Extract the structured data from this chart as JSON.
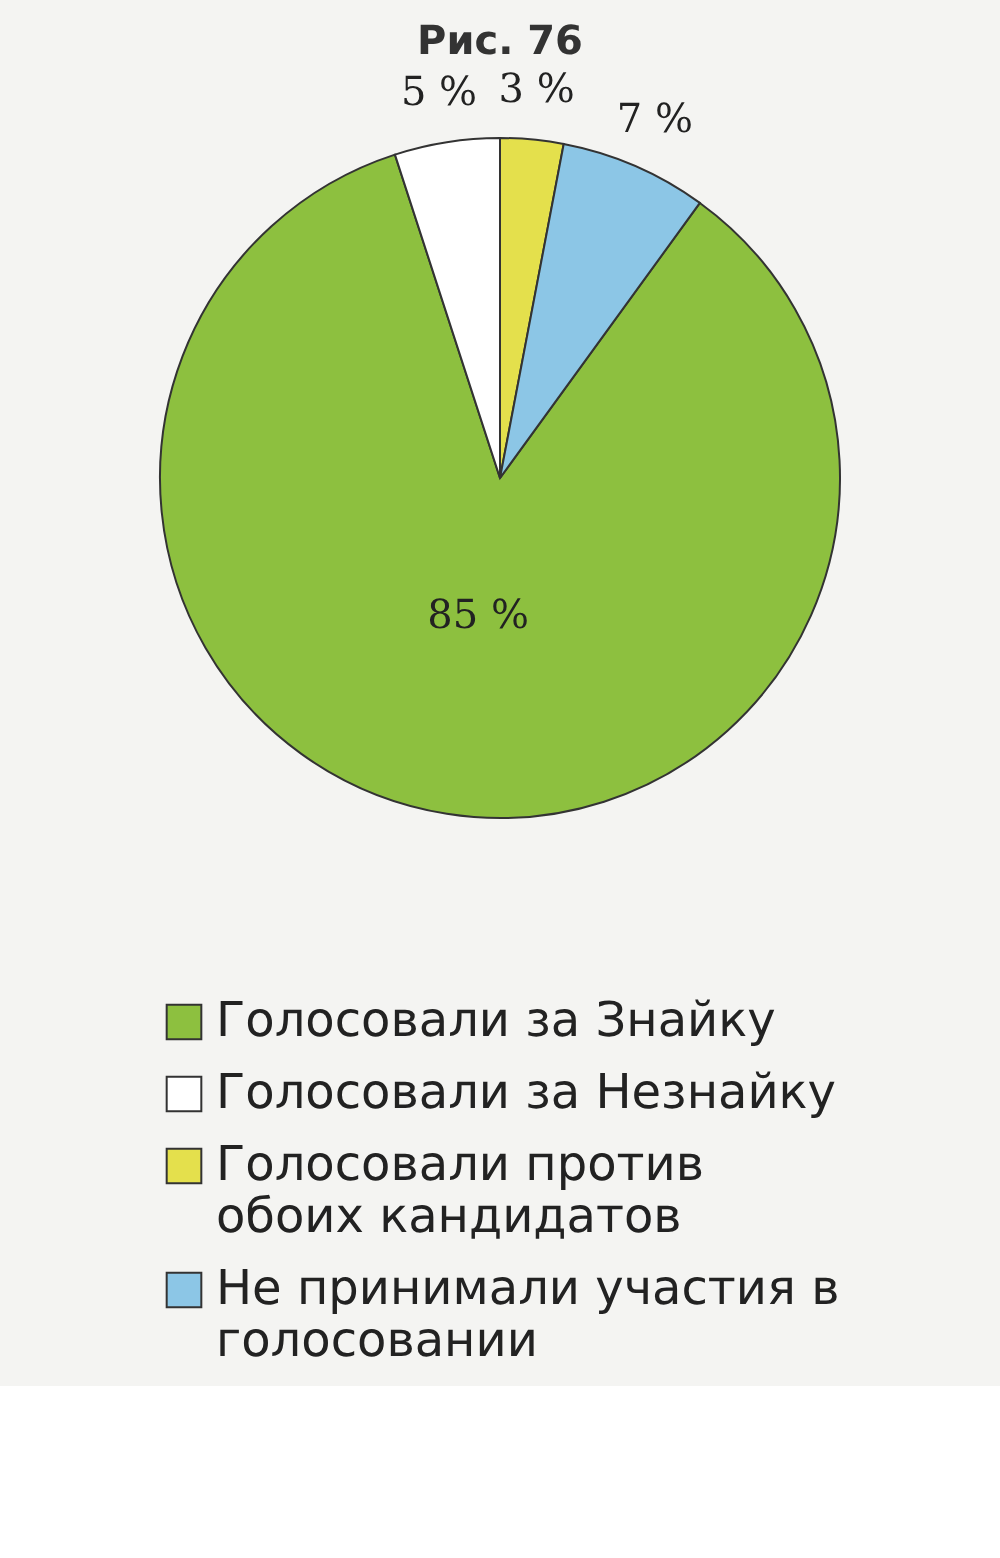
{
  "chart_data": {
    "type": "pie",
    "title": "Рис. 76",
    "categories": [
      "Голосовали за Знайку",
      "Голосовали за Незнайку",
      "Голосовали против обоих кандидатов",
      "Не принимали участия в голосовании"
    ],
    "values": [
      85,
      5,
      3,
      7
    ],
    "colors": [
      "#8dc03f",
      "#ffffff",
      "#e4e04c",
      "#8cc6e6"
    ],
    "value_labels": [
      "85 %",
      "5 %",
      "3 %",
      "7 %"
    ],
    "legend": "bottom"
  }
}
